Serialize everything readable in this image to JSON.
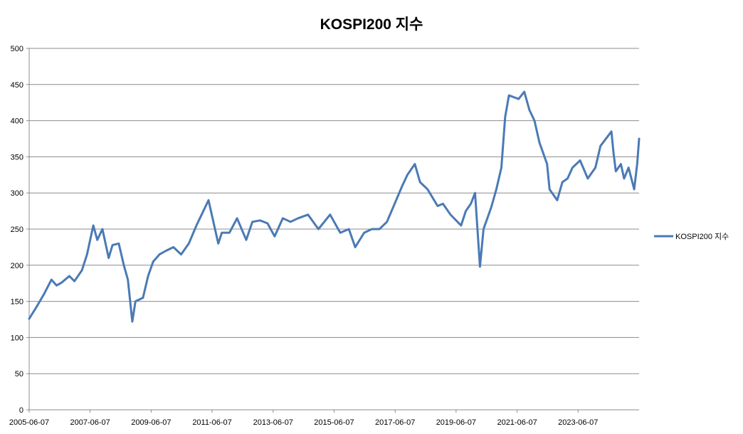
{
  "chart_data": {
    "type": "line",
    "title": "KOSPI200 지수",
    "xlabel": "",
    "ylabel": "",
    "ylim": [
      0,
      500
    ],
    "y_ticks": [
      0,
      50,
      100,
      150,
      200,
      250,
      300,
      350,
      400,
      450,
      500
    ],
    "x_range": [
      "2005-06-07",
      "2025-06-07"
    ],
    "x_ticks": [
      "2005-06-07",
      "2007-06-07",
      "2009-06-07",
      "2011-06-07",
      "2013-06-07",
      "2015-06-07",
      "2017-06-07",
      "2019-06-07",
      "2021-06-07",
      "2023-06-07"
    ],
    "grid": "horizontal",
    "legend_position": "right",
    "series": [
      {
        "name": "KOSPI200 지수",
        "color": "#4a7ab5",
        "x": [
          "2005-06-07",
          "2005-09-01",
          "2005-12-01",
          "2006-03-01",
          "2006-05-01",
          "2006-07-01",
          "2006-10-01",
          "2006-12-01",
          "2007-03-01",
          "2007-05-01",
          "2007-07-15",
          "2007-09-01",
          "2007-11-01",
          "2008-01-15",
          "2008-03-01",
          "2008-05-15",
          "2008-07-15",
          "2008-09-01",
          "2008-10-24",
          "2008-12-01",
          "2009-03-01",
          "2009-05-01",
          "2009-07-01",
          "2009-09-15",
          "2009-12-01",
          "2010-03-01",
          "2010-06-01",
          "2010-09-01",
          "2010-12-01",
          "2011-02-01",
          "2011-04-25",
          "2011-08-20",
          "2011-10-01",
          "2012-01-01",
          "2012-04-01",
          "2012-07-20",
          "2012-10-01",
          "2013-01-01",
          "2013-04-01",
          "2013-06-25",
          "2013-10-01",
          "2014-01-01",
          "2014-04-01",
          "2014-07-30",
          "2014-12-01",
          "2015-04-20",
          "2015-08-20",
          "2015-12-01",
          "2016-02-15",
          "2016-06-01",
          "2016-09-01",
          "2016-12-01",
          "2017-03-01",
          "2017-06-01",
          "2017-09-01",
          "2017-11-01",
          "2018-01-29",
          "2018-04-01",
          "2018-07-01",
          "2018-10-29",
          "2019-01-01",
          "2019-04-01",
          "2019-08-06",
          "2019-10-01",
          "2019-12-01",
          "2020-01-20",
          "2020-03-19",
          "2020-05-01",
          "2020-08-01",
          "2020-10-01",
          "2020-12-01",
          "2021-01-15",
          "2021-03-01",
          "2021-06-25",
          "2021-09-01",
          "2021-11-01",
          "2022-01-01",
          "2022-03-01",
          "2022-06-01",
          "2022-07-01",
          "2022-09-30",
          "2022-12-01",
          "2023-02-01",
          "2023-04-01",
          "2023-07-01",
          "2023-10-01",
          "2024-01-01",
          "2024-03-01",
          "2024-07-10",
          "2024-08-05",
          "2024-09-01",
          "2024-11-01",
          "2024-12-09",
          "2025-02-01",
          "2025-04-09",
          "2025-05-15",
          "2025-06-07"
        ],
        "values": [
          126,
          142,
          160,
          180,
          172,
          176,
          185,
          178,
          193,
          215,
          255,
          235,
          250,
          210,
          228,
          230,
          200,
          180,
          122,
          150,
          155,
          185,
          205,
          215,
          220,
          225,
          215,
          230,
          255,
          270,
          290,
          230,
          245,
          245,
          265,
          235,
          260,
          262,
          258,
          240,
          265,
          260,
          265,
          270,
          250,
          270,
          245,
          250,
          225,
          245,
          250,
          250,
          260,
          285,
          310,
          325,
          340,
          315,
          305,
          282,
          285,
          270,
          255,
          275,
          285,
          300,
          198,
          250,
          280,
          305,
          335,
          405,
          435,
          430,
          440,
          415,
          400,
          370,
          340,
          305,
          290,
          315,
          320,
          335,
          345,
          320,
          335,
          365,
          385,
          355,
          330,
          340,
          320,
          335,
          305,
          340,
          375
        ]
      }
    ]
  }
}
